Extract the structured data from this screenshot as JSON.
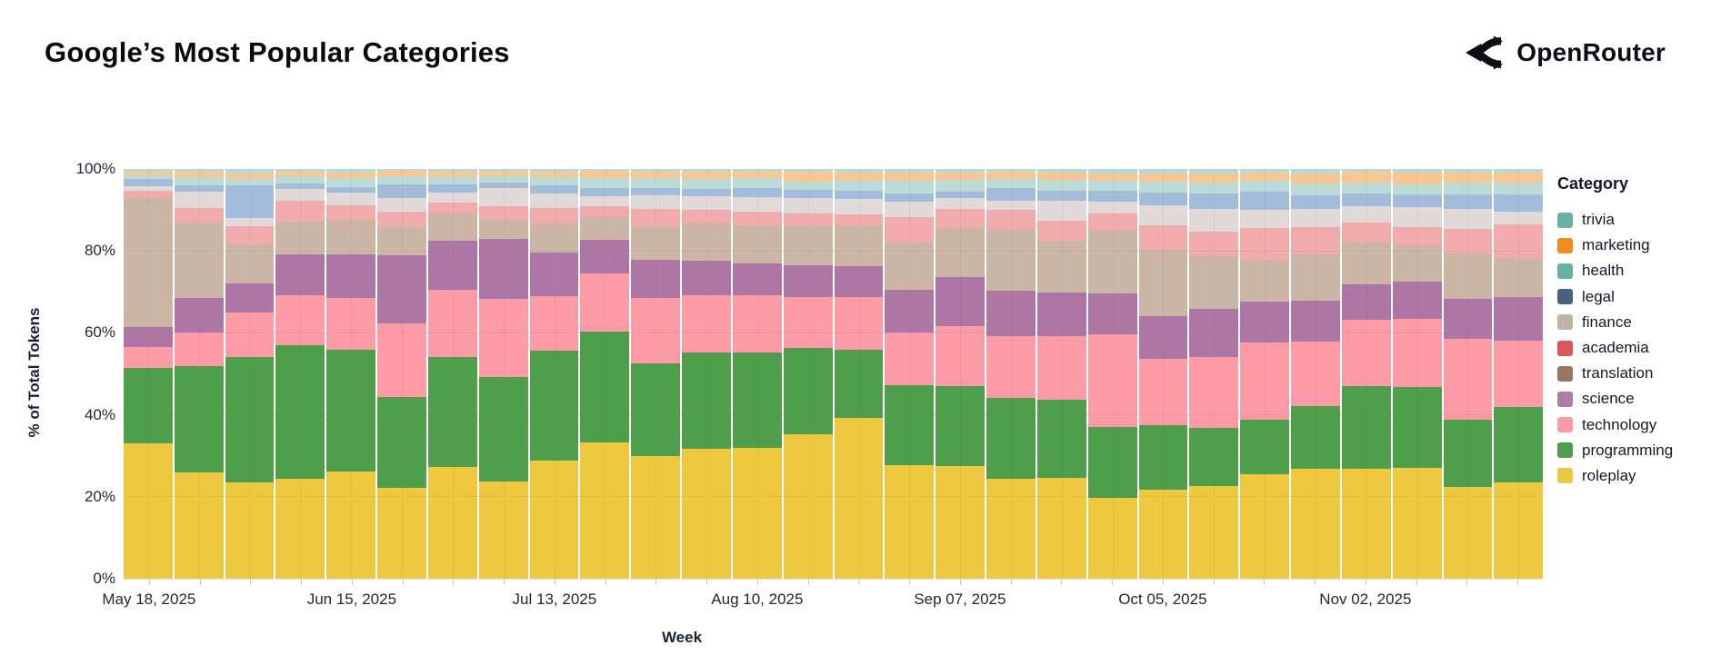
{
  "header": {
    "title": "Google’s Most Popular Categories",
    "brand": "OpenRouter"
  },
  "chart_data": {
    "type": "bar",
    "stacked": true,
    "normalized_percent": true,
    "title": "Google’s Most Popular Categories",
    "xlabel": "Week",
    "ylabel": "% of Total Tokens",
    "ylim": [
      0,
      100
    ],
    "ytick_labels": [
      "0%",
      "20%",
      "40%",
      "60%",
      "80%",
      "100%"
    ],
    "ytick_values": [
      0,
      20,
      40,
      60,
      80,
      100
    ],
    "legend_title": "Category",
    "legend_position": "right",
    "grid": true,
    "weeks": [
      "May 18, 2025",
      "May 25, 2025",
      "Jun 01, 2025",
      "Jun 08, 2025",
      "Jun 15, 2025",
      "Jun 22, 2025",
      "Jun 29, 2025",
      "Jul 06, 2025",
      "Jul 13, 2025",
      "Jul 20, 2025",
      "Jul 27, 2025",
      "Aug 03, 2025",
      "Aug 10, 2025",
      "Aug 17, 2025",
      "Aug 24, 2025",
      "Aug 31, 2025",
      "Sep 07, 2025",
      "Sep 14, 2025",
      "Sep 21, 2025",
      "Sep 28, 2025",
      "Oct 05, 2025",
      "Oct 12, 2025",
      "Oct 19, 2025",
      "Oct 26, 2025",
      "Nov 02, 2025",
      "Nov 09, 2025",
      "Nov 16, 2025",
      "Nov 23, 2025"
    ],
    "x_axis_labels": [
      {
        "index": 0,
        "text": "May 18, 2025"
      },
      {
        "index": 4,
        "text": "Jun 15, 2025"
      },
      {
        "index": 8,
        "text": "Jul 13, 2025"
      },
      {
        "index": 12,
        "text": "Aug 10, 2025"
      },
      {
        "index": 16,
        "text": "Sep 07, 2025"
      },
      {
        "index": 20,
        "text": "Oct 05, 2025"
      },
      {
        "index": 24,
        "text": "Nov 02, 2025"
      }
    ],
    "series": [
      {
        "name": "trivia",
        "legend_color": "#69b0a9",
        "bar_color": "#b6d9d5",
        "patterned": true,
        "legend_pattern": null,
        "values": [
          0.7,
          0.7,
          1,
          0.7,
          0.9,
          0.5,
          0.6,
          0.7,
          0.7,
          0.5,
          0.7,
          0.6,
          0.6,
          0.6,
          0.9,
          0.9,
          0.9,
          0.6,
          0.9,
          1,
          1,
          1.1,
          0.8,
          1,
          0.7,
          0.9,
          0.9,
          0.8
        ]
      },
      {
        "name": "marketing",
        "legend_color": "#f08c1d",
        "bar_color": "#f8c691",
        "patterned": true,
        "legend_pattern": null,
        "values": [
          0.8,
          1.3,
          1.5,
          1.1,
          1.3,
          1.3,
          1.4,
          1.1,
          1.3,
          1.8,
          1.6,
          1.9,
          1.7,
          2.4,
          2,
          2,
          1.8,
          1.9,
          1.8,
          1.9,
          2.1,
          2.2,
          2,
          2.6,
          2.7,
          2.8,
          2.4,
          2.5
        ]
      },
      {
        "name": "health",
        "legend_color": "#69b0a9",
        "bar_color": "#bcdbd7",
        "patterned": true,
        "legend_pattern": null,
        "values": [
          1,
          2,
          1.5,
          1.7,
          2.2,
          2,
          1.7,
          1.4,
          1.9,
          2.4,
          2.3,
          2.4,
          2.4,
          2.1,
          2.4,
          3,
          2.8,
          2.2,
          2.6,
          2.4,
          2.7,
          2.7,
          2.7,
          2.9,
          2.6,
          2.5,
          2.8,
          2.9
        ]
      },
      {
        "name": "legal",
        "legend_color": "#49637f",
        "bar_color": "#a3bcdb",
        "patterned": true,
        "legend_pattern": "light-dots",
        "values": [
          1.6,
          1.5,
          8,
          1.4,
          1.4,
          3.3,
          2,
          1.5,
          2.1,
          1.9,
          1.9,
          1.7,
          2.1,
          2,
          2.1,
          2,
          1.6,
          3,
          2.4,
          2.6,
          3,
          3.7,
          4.4,
          3.3,
          3,
          3.2,
          3.6,
          4.2
        ]
      },
      {
        "name": "finance",
        "legend_color": "#c2b4a4",
        "bar_color": "#e0d9d8",
        "patterned": true,
        "legend_pattern": "dark-dots",
        "values": [
          1.2,
          4,
          2,
          2.9,
          3,
          3.2,
          2.4,
          4.3,
          3.6,
          2.5,
          3.2,
          3.4,
          3.7,
          3.7,
          3.7,
          3.9,
          2.6,
          2.2,
          4.9,
          2.9,
          5,
          5.5,
          4.6,
          4.4,
          4.1,
          4.8,
          5,
          3.1
        ]
      },
      {
        "name": "academia",
        "legend_color": "#e1555a",
        "bar_color": "#f2abab",
        "patterned": true,
        "legend_pattern": null,
        "values": [
          1.7,
          3.5,
          4.5,
          5.1,
          3.7,
          3.9,
          2.7,
          3.5,
          3.6,
          2.7,
          4.5,
          3.4,
          3.2,
          2.9,
          2.7,
          6.1,
          4.6,
          5,
          4.9,
          4.3,
          6,
          6,
          7.8,
          6.6,
          4.8,
          4.4,
          5.8,
          8.5
        ]
      },
      {
        "name": "translation",
        "legend_color": "#997660",
        "bar_color": "#cbb6a5",
        "patterned": true,
        "legend_pattern": null,
        "values": [
          31.5,
          18.5,
          9.5,
          7.9,
          8.3,
          6.9,
          6.7,
          4.5,
          7.1,
          5.5,
          8,
          9,
          9.3,
          9.7,
          10,
          11.6,
          12.1,
          14.9,
          12.7,
          15.3,
          16,
          12.9,
          10,
          11.3,
          10.2,
          8.9,
          11.1,
          9.3
        ]
      },
      {
        "name": "science",
        "legend_color": "#af7aa5",
        "bar_color": "#ae76a4",
        "patterned": false,
        "legend_pattern": null,
        "values": [
          5,
          8.5,
          7,
          10,
          10.6,
          16.6,
          12,
          14.8,
          10.8,
          8.3,
          9.2,
          8.4,
          7.8,
          7.8,
          7.5,
          10.5,
          11.9,
          11,
          10.6,
          10,
          10.5,
          11.9,
          10,
          10,
          8.6,
          9.1,
          9.8,
          10.7
        ]
      },
      {
        "name": "technology",
        "legend_color": "#fc9aa5",
        "bar_color": "#fc9aa5",
        "patterned": false,
        "legend_pattern": null,
        "values": [
          5,
          8,
          11,
          12.2,
          12.7,
          18,
          16.3,
          19,
          13.2,
          14.1,
          16,
          14,
          14,
          12.5,
          12.8,
          12.8,
          14.7,
          15.1,
          15.5,
          22.5,
          16.3,
          17.1,
          19,
          15.8,
          16.3,
          16.6,
          19.9,
          16
        ]
      },
      {
        "name": "programming",
        "legend_color": "#4f9e4c",
        "bar_color": "#4f9e4c",
        "patterned": false,
        "legend_pattern": null,
        "values": [
          18.5,
          26,
          30.5,
          32.7,
          29.8,
          22.2,
          27,
          25.4,
          26.9,
          27.1,
          22.6,
          23.5,
          23.3,
          21.1,
          16.6,
          19.4,
          19.4,
          19.8,
          19,
          17.4,
          15.7,
          14.3,
          13.3,
          15.2,
          20.1,
          19.7,
          16.3,
          18.5
        ]
      },
      {
        "name": "roleplay",
        "legend_color": "#ecc840",
        "bar_color": "#eec83f",
        "patterned": false,
        "legend_pattern": null,
        "values": [
          33,
          26,
          23.5,
          24.3,
          26.1,
          22.1,
          27.2,
          23.8,
          28.8,
          33.2,
          30,
          31.7,
          31.9,
          35.2,
          39.3,
          27.8,
          27.6,
          24.3,
          24.7,
          19.7,
          21.7,
          22.6,
          25.4,
          26.9,
          26.9,
          27.1,
          22.4,
          23.5
        ]
      }
    ]
  }
}
